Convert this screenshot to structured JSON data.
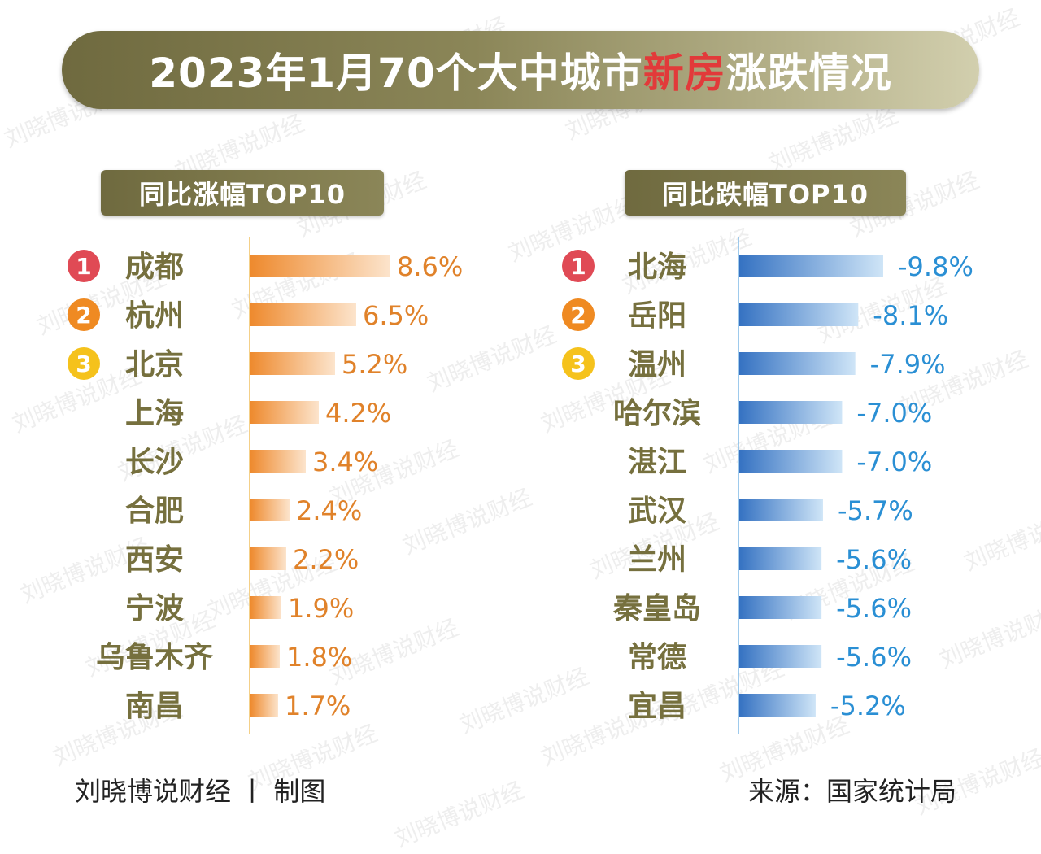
{
  "title": {
    "before": "2023年1月70个大中城市",
    "highlight": "新房",
    "after": "涨跌情况"
  },
  "footer": {
    "author": "刘晓博说财经 丨 制图",
    "source": "来源：国家统计局"
  },
  "watermark_text": "刘晓博说财经",
  "colors": {
    "increase": "#ee8a2e",
    "decrease": "#3f7fcc",
    "city_text": "#76703e",
    "rank1": "#e04a55",
    "rank2": "#ef8a22",
    "rank3": "#f5c21c"
  },
  "chart_data": [
    {
      "type": "bar",
      "orientation": "horizontal",
      "title": "同比涨幅TOP10",
      "categories": [
        "成都",
        "杭州",
        "北京",
        "上海",
        "长沙",
        "合肥",
        "西安",
        "宁波",
        "乌鲁木齐",
        "南昌"
      ],
      "values": [
        8.6,
        6.5,
        5.2,
        4.2,
        3.4,
        2.4,
        2.2,
        1.9,
        1.8,
        1.7
      ],
      "labels": [
        "8.6%",
        "6.5%",
        "5.2%",
        "4.2%",
        "3.4%",
        "2.4%",
        "2.2%",
        "1.9%",
        "1.8%",
        "1.7%"
      ],
      "ranks": [
        "1",
        "2",
        "3"
      ],
      "unit": "%"
    },
    {
      "type": "bar",
      "orientation": "horizontal",
      "title": "同比跌幅TOP10",
      "categories": [
        "北海",
        "岳阳",
        "温州",
        "哈尔滨",
        "湛江",
        "武汉",
        "兰州",
        "秦皇岛",
        "常德",
        "宜昌"
      ],
      "values": [
        -9.8,
        -8.1,
        -7.9,
        -7.0,
        -7.0,
        -5.7,
        -5.6,
        -5.6,
        -5.6,
        -5.2
      ],
      "labels": [
        "-9.8%",
        "-8.1%",
        "-7.9%",
        "-7.0%",
        "-7.0%",
        "-5.7%",
        "-5.6%",
        "-5.6%",
        "-5.6%",
        "-5.2%"
      ],
      "ranks": [
        "1",
        "2",
        "3"
      ],
      "unit": "%"
    }
  ]
}
